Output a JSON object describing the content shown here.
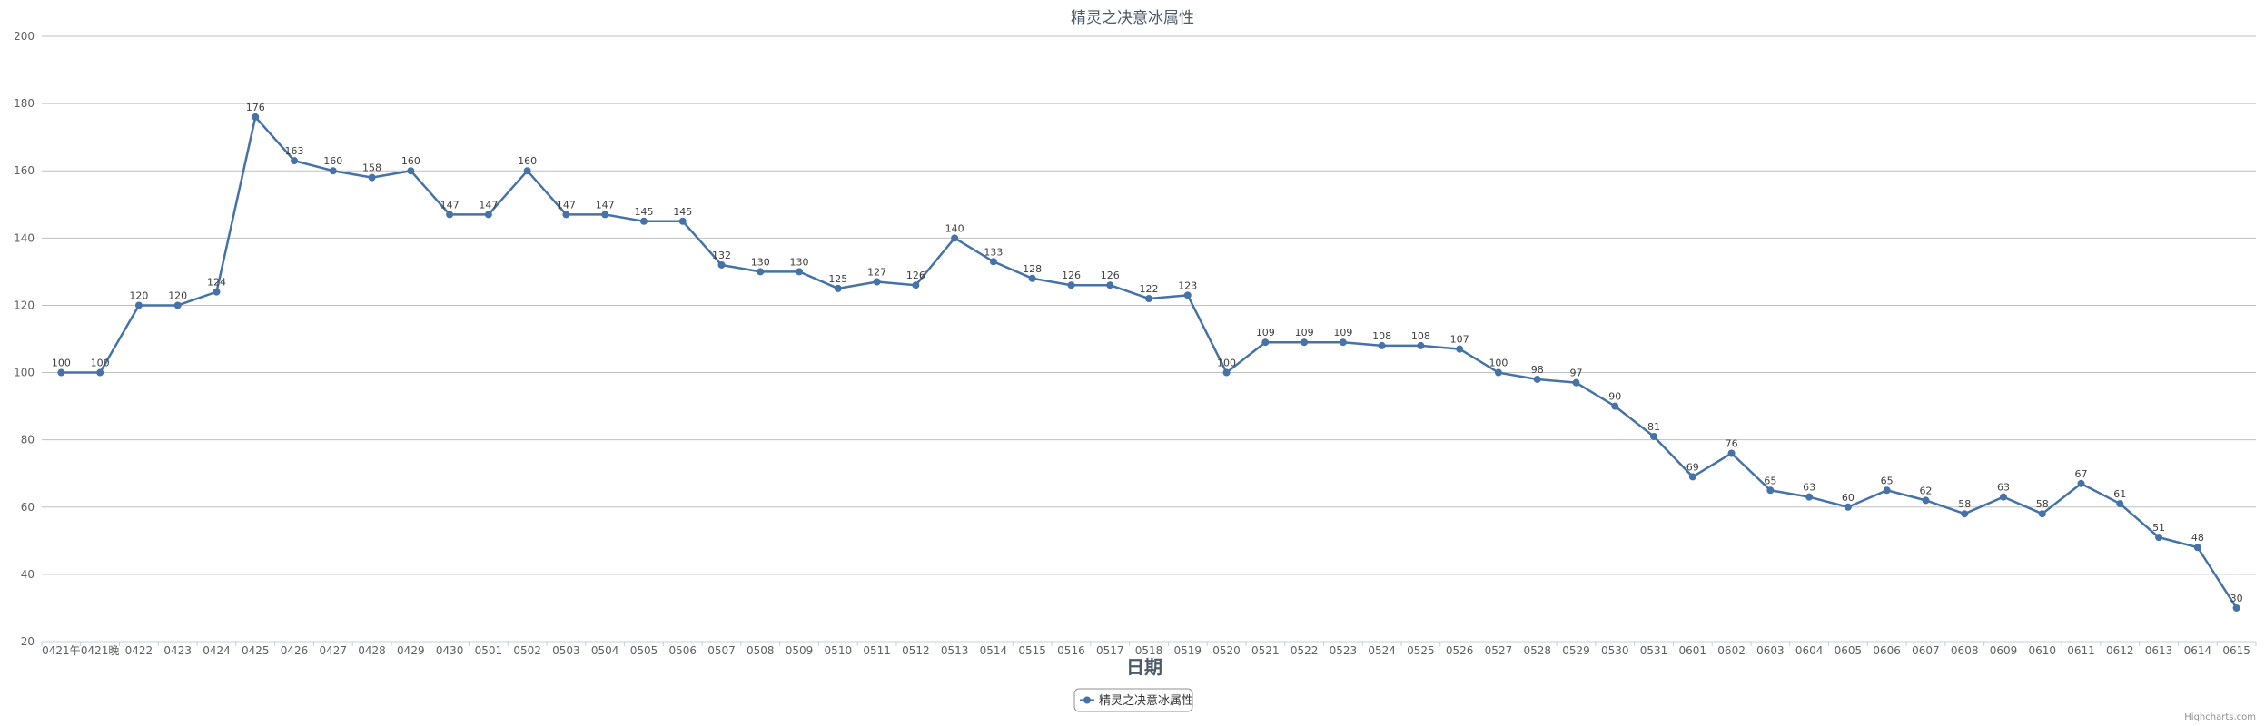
{
  "chart_data": {
    "type": "line",
    "title": "精灵之决意冰属性",
    "xlabel": "日期",
    "ylabel": "",
    "ylim": [
      20,
      200
    ],
    "yticks": [
      20,
      40,
      60,
      80,
      100,
      120,
      140,
      160,
      180,
      200
    ],
    "grid": true,
    "legend_position": "bottom-center",
    "categories": [
      "0421午",
      "0421晚",
      "0422",
      "0423",
      "0424",
      "0425",
      "0426",
      "0427",
      "0428",
      "0429",
      "0430",
      "0501",
      "0502",
      "0503",
      "0504",
      "0505",
      "0506",
      "0507",
      "0508",
      "0509",
      "0510",
      "0511",
      "0512",
      "0513",
      "0514",
      "0515",
      "0516",
      "0517",
      "0518",
      "0519",
      "0520",
      "0521",
      "0522",
      "0523",
      "0524",
      "0525",
      "0526",
      "0527",
      "0528",
      "0529",
      "0530",
      "0531",
      "0601",
      "0602",
      "0603",
      "0604",
      "0605",
      "0606",
      "0607",
      "0608",
      "0609",
      "0610",
      "0611",
      "0612",
      "0613",
      "0614",
      "0615"
    ],
    "series": [
      {
        "name": "精灵之决意冰属性",
        "color": "#4572a7",
        "values": [
          100,
          100,
          120,
          120,
          124,
          176,
          163,
          160,
          158,
          160,
          147,
          147,
          160,
          147,
          147,
          145,
          145,
          132,
          130,
          130,
          125,
          127,
          126,
          140,
          133,
          128,
          126,
          126,
          122,
          123,
          100,
          109,
          109,
          109,
          108,
          108,
          107,
          100,
          98,
          97,
          90,
          81,
          69,
          76,
          65,
          63,
          60,
          65,
          62,
          58,
          63,
          58,
          67,
          61,
          51,
          48,
          30
        ]
      }
    ]
  },
  "credits": "Highcharts.com"
}
